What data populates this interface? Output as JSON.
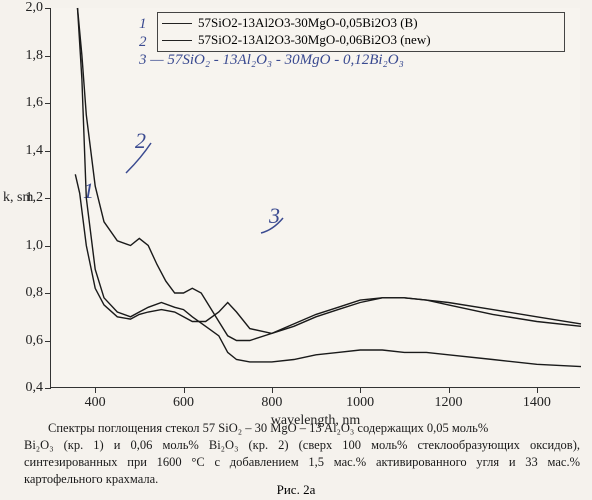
{
  "chart": {
    "type": "line",
    "xlim": [
      300,
      1500
    ],
    "ylim": [
      0.4,
      2.0
    ],
    "xticks": [
      400,
      600,
      800,
      1000,
      1200,
      1400
    ],
    "yticks": [
      0.4,
      0.6,
      0.8,
      1.0,
      1.2,
      1.4,
      1.6,
      1.8,
      2.0
    ],
    "xlabel": "wavelength, nm",
    "ylabel": "k, sm",
    "background_color": "#f7f4ef",
    "axis_color": "#333333",
    "label_fontsize": 14,
    "series": [
      {
        "id": "curve1",
        "label": "57SiO2-13Al2O3-30MgO-0,05Bi2O3 (B)",
        "color": "#1a1a1a",
        "line_width": 1.4,
        "x": [
          360,
          370,
          380,
          400,
          420,
          450,
          480,
          500,
          520,
          550,
          580,
          600,
          620,
          650,
          680,
          700,
          720,
          750,
          800,
          850,
          900,
          950,
          1000,
          1050,
          1100,
          1150,
          1200,
          1300,
          1400,
          1500
        ],
        "y": [
          2.0,
          1.7,
          1.2,
          0.9,
          0.78,
          0.72,
          0.7,
          0.72,
          0.74,
          0.76,
          0.74,
          0.73,
          0.7,
          0.66,
          0.62,
          0.55,
          0.52,
          0.51,
          0.51,
          0.52,
          0.54,
          0.55,
          0.56,
          0.56,
          0.55,
          0.55,
          0.54,
          0.52,
          0.5,
          0.49
        ]
      },
      {
        "id": "curve2",
        "label": "57SiO2-13Al2O3-30MgO-0,06Bi2O3 (new)",
        "color": "#1a1a1a",
        "line_width": 1.4,
        "x": [
          360,
          370,
          380,
          400,
          420,
          450,
          480,
          500,
          520,
          540,
          560,
          580,
          600,
          620,
          640,
          660,
          680,
          700,
          720,
          750,
          800,
          850,
          900,
          950,
          1000,
          1050,
          1100,
          1150,
          1200,
          1300,
          1400,
          1500
        ],
        "y": [
          2.0,
          1.8,
          1.55,
          1.25,
          1.1,
          1.02,
          1.0,
          1.03,
          1.0,
          0.92,
          0.85,
          0.8,
          0.8,
          0.82,
          0.8,
          0.74,
          0.68,
          0.62,
          0.6,
          0.6,
          0.63,
          0.67,
          0.71,
          0.74,
          0.77,
          0.78,
          0.78,
          0.77,
          0.75,
          0.71,
          0.68,
          0.66
        ]
      },
      {
        "id": "curve3",
        "label": "57SiO2 - 13Al2O3 - 30MgO - 0,12Bi2O3",
        "color": "#1a1a1a",
        "line_width": 1.4,
        "x": [
          355,
          365,
          380,
          400,
          420,
          450,
          480,
          500,
          520,
          550,
          580,
          600,
          620,
          650,
          680,
          700,
          720,
          750,
          800,
          850,
          900,
          950,
          1000,
          1050,
          1100,
          1150,
          1200,
          1300,
          1400,
          1500
        ],
        "y": [
          1.3,
          1.22,
          1.0,
          0.82,
          0.75,
          0.7,
          0.69,
          0.71,
          0.72,
          0.73,
          0.72,
          0.7,
          0.68,
          0.68,
          0.72,
          0.76,
          0.72,
          0.65,
          0.63,
          0.66,
          0.7,
          0.73,
          0.76,
          0.78,
          0.78,
          0.77,
          0.76,
          0.73,
          0.7,
          0.67
        ]
      }
    ],
    "handwritten_numbers": {
      "1": "1",
      "2": "2",
      "3": "3"
    },
    "handwritten_legend_3": "3 — 57SiO₂ - 13Al₂O₃ - 30MgO - 0,12Bi₂O₃"
  },
  "caption": {
    "line1": "Спектры поглощения стекол 57 SiO₂ – 30 MgO – 13 Al₂O₃ содержащих 0,05 моль%",
    "line2": "Bi₂O₃  (кр. 1) и 0,06 моль%  Bi₂O₃ (кр. 2) (сверх 100 моль% стеклообразующих оксидов),",
    "line3": "синтезированных при 1600 °С с добавлением 1,5 мас.% активированного угля и 33 мас.%",
    "line4": "картофельного крахмала.",
    "figure_label": "Рис. 2а"
  }
}
